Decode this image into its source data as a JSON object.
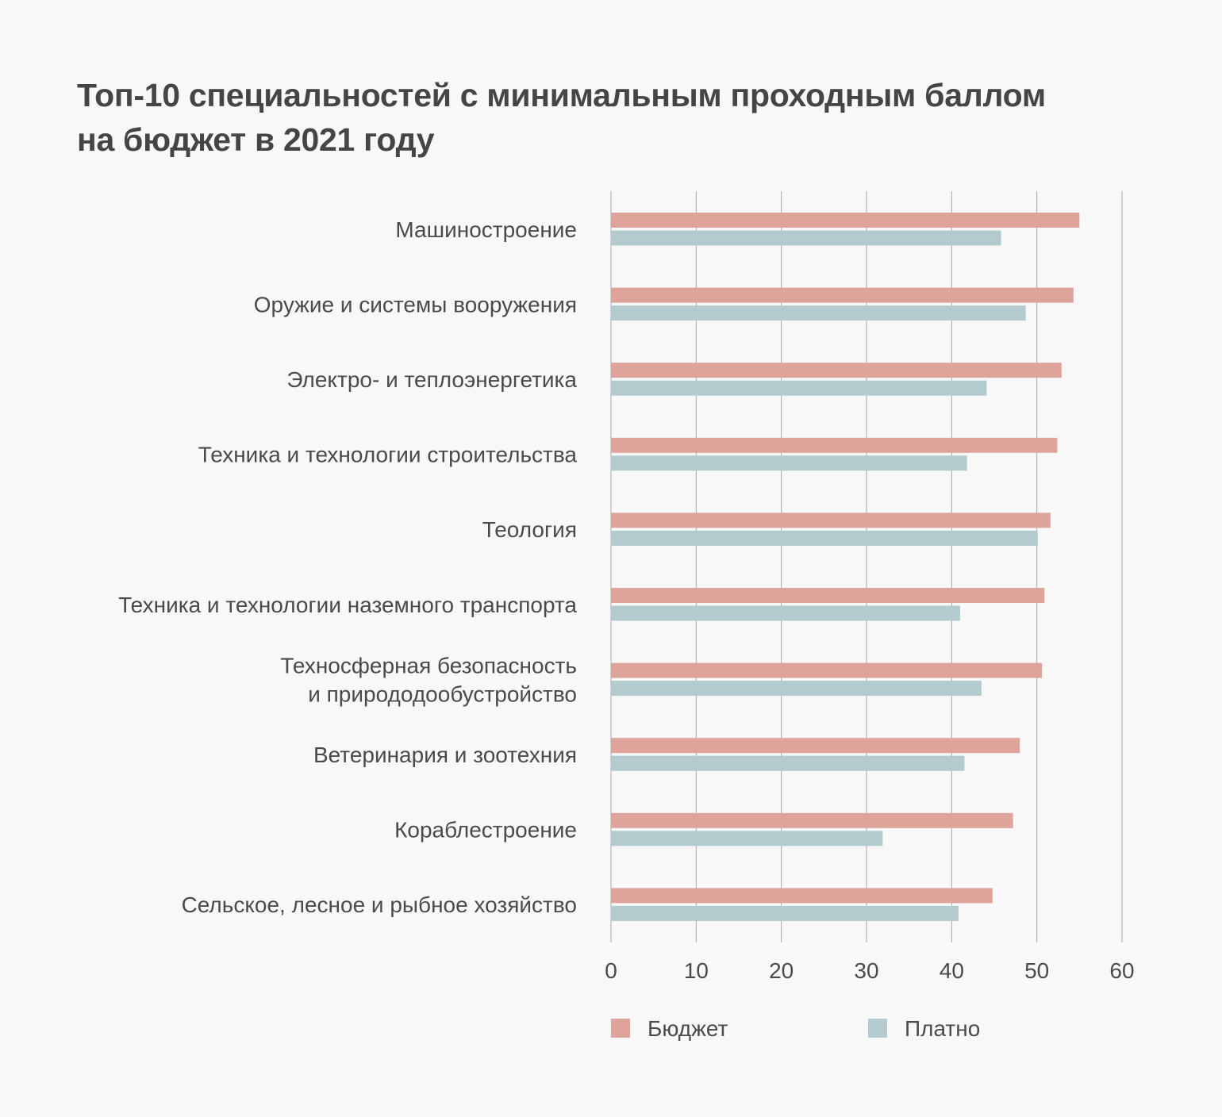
{
  "header": {
    "title_line1": "Топ-10 специальностей с минимальным проходным баллом",
    "title_line2": "на бюджет в 2021 году"
  },
  "chart_data": {
    "type": "bar",
    "orientation": "horizontal",
    "title": "Топ-10 специальностей с минимальным проходным баллом на бюджет в 2021 году",
    "categories": [
      [
        "Машиностроение"
      ],
      [
        "Оружие и системы вооружения"
      ],
      [
        "Электро- и теплоэнергетика"
      ],
      [
        "Техника и технологии строительства"
      ],
      [
        "Теология"
      ],
      [
        "Техника и технологии наземного транспорта"
      ],
      [
        "Техносферная безопасность",
        "и природодообустройство"
      ],
      [
        "Ветеринария и зоотехния"
      ],
      [
        "Кораблестроение"
      ],
      [
        "Сельское, лесное и рыбное хозяйство"
      ]
    ],
    "series": [
      {
        "name": "Бюджет",
        "color": "#dea39a",
        "values": [
          55.0,
          54.3,
          52.9,
          52.4,
          51.6,
          50.9,
          50.6,
          48.0,
          47.2,
          44.8
        ]
      },
      {
        "name": "Платно",
        "color": "#b3cbcf",
        "values": [
          45.8,
          48.7,
          44.1,
          41.8,
          50.1,
          41.0,
          43.5,
          41.5,
          31.9,
          40.8
        ]
      }
    ],
    "xlim": [
      0,
      60
    ],
    "ticks": [
      "0",
      "10",
      "20",
      "30",
      "40",
      "50",
      "60"
    ],
    "grid": true,
    "legend_position": "bottom"
  }
}
